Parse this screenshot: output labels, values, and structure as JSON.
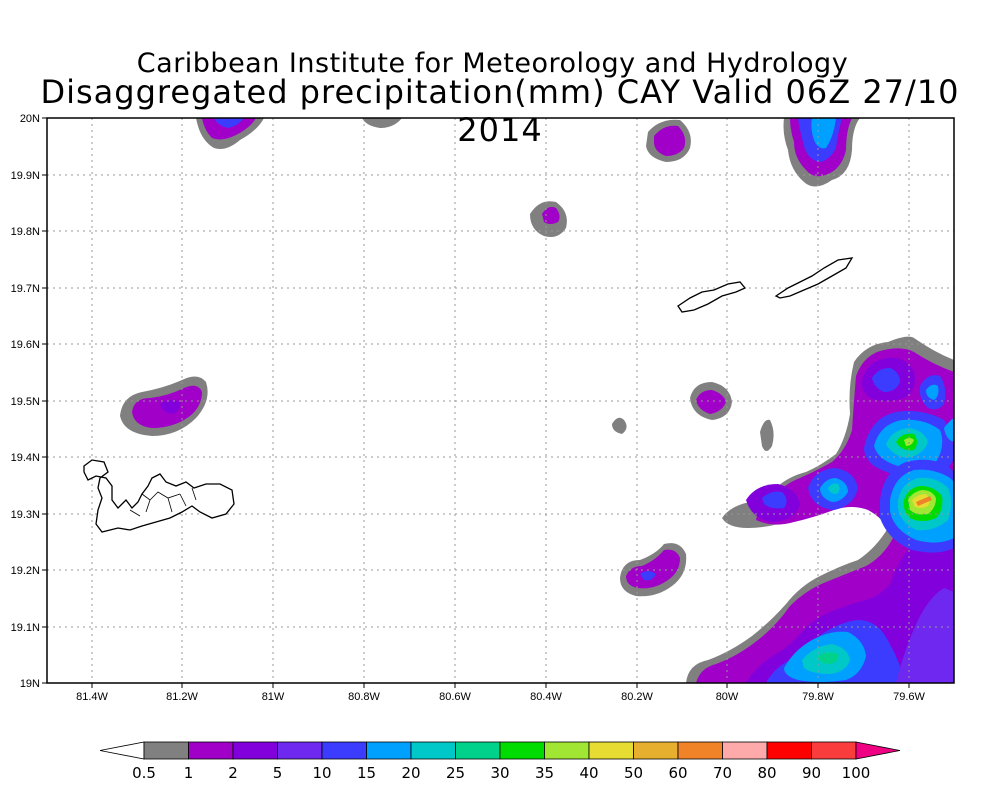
{
  "title_line1": "Caribbean Institute for Meteorology and Hydrology",
  "title_line2": "Disaggregated precipitation(mm) CAY Valid 06Z 27/10 2014",
  "map": {
    "lon_range": [
      -81.5,
      -79.5
    ],
    "lat_range": [
      19.0,
      20.0
    ],
    "grid": "dotted",
    "x_tick_labels": [
      "81.4W",
      "81.2W",
      "81W",
      "80.8W",
      "80.6W",
      "80.4W",
      "80.2W",
      "80W",
      "79.8W",
      "79.6W"
    ],
    "y_tick_labels": [
      "19N",
      "19.1N",
      "19.2N",
      "19.3N",
      "19.4N",
      "19.5N",
      "19.6N",
      "19.7N",
      "19.8N",
      "19.9N",
      "20N"
    ]
  },
  "colorbar": {
    "labels": [
      "0.5",
      "1",
      "2",
      "5",
      "10",
      "15",
      "20",
      "25",
      "30",
      "35",
      "40",
      "50",
      "60",
      "70",
      "80",
      "90",
      "100"
    ],
    "colors": [
      "#ffffff",
      "#808080",
      "#a000c8",
      "#8200dc",
      "#6e28f0",
      "#3c3cff",
      "#00a0ff",
      "#00c8c8",
      "#00d28c",
      "#00dc00",
      "#a0e632",
      "#e6dc32",
      "#e6af2d",
      "#f08228",
      "#ffaaaa",
      "#ff0000",
      "#fa3c3c",
      "#f00082"
    ]
  }
}
